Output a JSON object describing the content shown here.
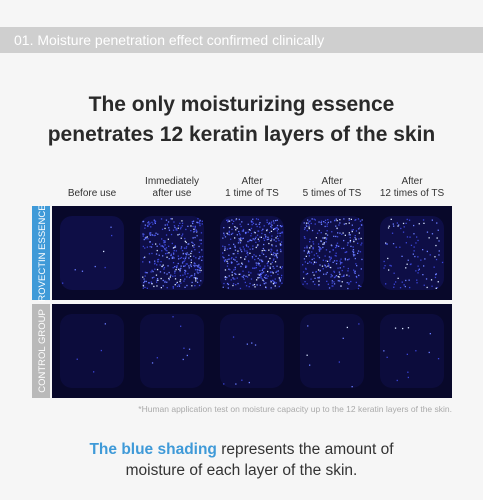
{
  "header": {
    "title": "01. Moisture penetration effect confirmed clinically"
  },
  "headline": [
    "The only moisturizing essence",
    "penetrates 12 keratin layers of the skin"
  ],
  "columns": [
    [
      "Before use"
    ],
    [
      "Immediately",
      "after use"
    ],
    [
      "After",
      "1 time of TS"
    ],
    [
      "After",
      "5 times of TS"
    ],
    [
      "After",
      "12 times of TS"
    ]
  ],
  "rows": [
    {
      "label": "ROVECTIN ESSENCE"
    },
    {
      "label": "CONTROL GROUP"
    }
  ],
  "footnote": "*Human application test on moisture capacity up to the 12 keratin layers of the skin.",
  "caption": {
    "highlight": "The blue shading",
    "rest_line1": " represents the amount of",
    "line2": "moisture of each layer of the skin."
  }
}
